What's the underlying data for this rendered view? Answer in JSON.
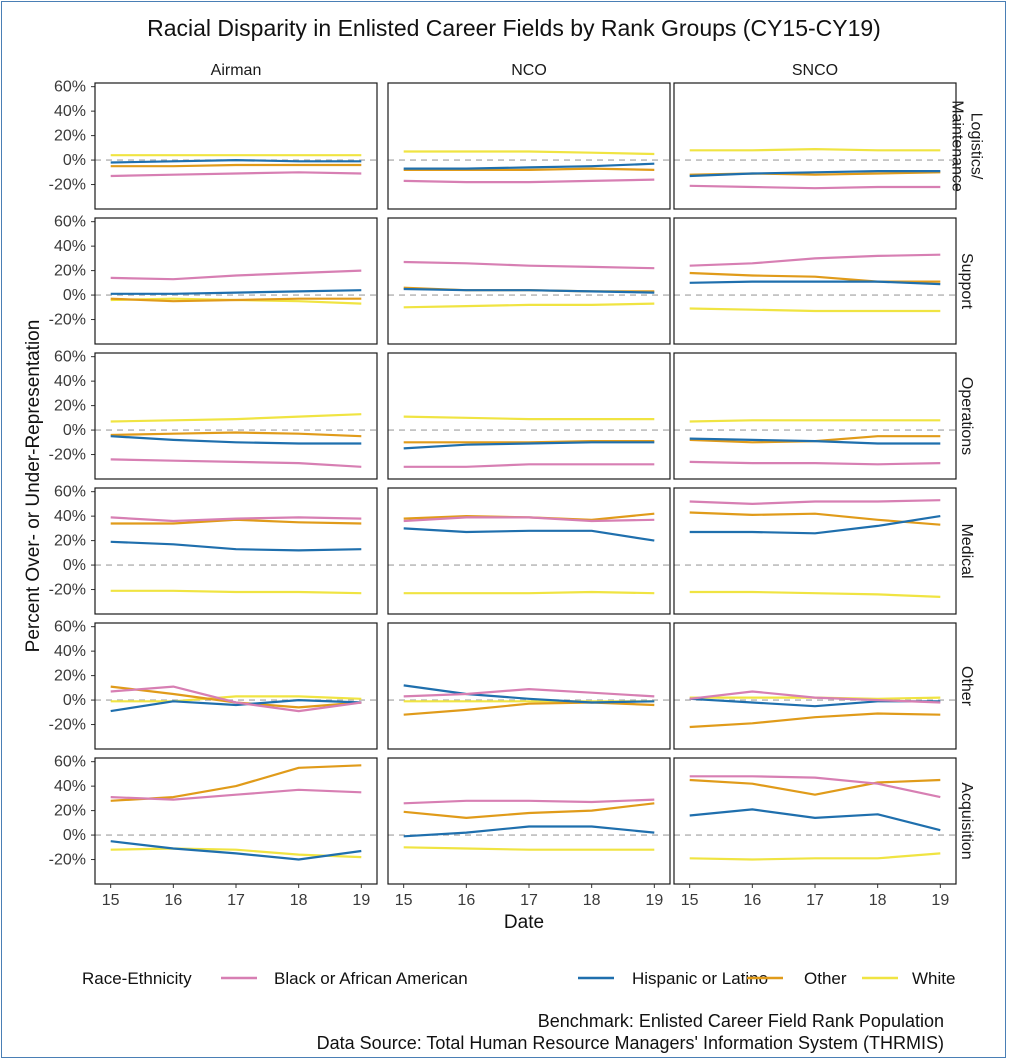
{
  "chart_data": {
    "type": "line",
    "title": "Racial Disparity in Enlisted Career Fields by Rank Groups (CY15-CY19)",
    "xlabel": "Date",
    "ylabel": "Percent Over- or Under-Representation",
    "x": [
      15,
      16,
      17,
      18,
      19
    ],
    "x_ticks": [
      "15",
      "16",
      "17",
      "18",
      "19"
    ],
    "ylim": [
      -40,
      63
    ],
    "y_ticks": [
      "-20%",
      "0%",
      "20%",
      "40%",
      "60%"
    ],
    "y_tick_values": [
      -20,
      0,
      20,
      40,
      60
    ],
    "columns": [
      "Airman",
      "NCO",
      "SNCO"
    ],
    "rows": [
      {
        "id": "logistics",
        "label_lines": [
          "Logistics/",
          "Maintenance"
        ]
      },
      {
        "id": "support",
        "label_lines": [
          "Support"
        ]
      },
      {
        "id": "operations",
        "label_lines": [
          "Operations"
        ]
      },
      {
        "id": "medical",
        "label_lines": [
          "Medical"
        ]
      },
      {
        "id": "other",
        "label_lines": [
          "Other"
        ]
      },
      {
        "id": "acquisition",
        "label_lines": [
          "Acquisition"
        ]
      }
    ],
    "legend": {
      "title": "Race-Ethnicity",
      "position": "bottom",
      "entries": [
        {
          "key": "black",
          "name": "Black or African American",
          "color": "#d77fb3"
        },
        {
          "key": "hispanic",
          "name": "Hispanic or Latino",
          "color": "#1f6fad"
        },
        {
          "key": "other",
          "name": "Other",
          "color": "#e09b1a"
        },
        {
          "key": "white",
          "name": "White",
          "color": "#f0e442"
        }
      ]
    },
    "reference_line": {
      "y": 0,
      "style": "dashed",
      "color": "#b0b0b0"
    },
    "panels": {
      "logistics": {
        "Airman": {
          "black": [
            -13,
            -12,
            -11,
            -10,
            -11
          ],
          "hispanic": [
            -2,
            -1,
            0,
            -1,
            -1
          ],
          "other": [
            -5,
            -5,
            -4,
            -4,
            -4
          ],
          "white": [
            4,
            4,
            4,
            4,
            4
          ]
        },
        "NCO": {
          "black": [
            -17,
            -18,
            -18,
            -17,
            -16
          ],
          "hispanic": [
            -7,
            -7,
            -6,
            -5,
            -3
          ],
          "other": [
            -8,
            -8,
            -8,
            -7,
            -8
          ],
          "white": [
            7,
            7,
            7,
            6,
            5
          ]
        },
        "SNCO": {
          "black": [
            -21,
            -22,
            -23,
            -22,
            -22
          ],
          "hispanic": [
            -13,
            -11,
            -10,
            -9,
            -9
          ],
          "other": [
            -12,
            -11,
            -12,
            -11,
            -10
          ],
          "white": [
            8,
            8,
            9,
            8,
            8
          ]
        }
      },
      "support": {
        "Airman": {
          "black": [
            14,
            13,
            16,
            18,
            20
          ],
          "hispanic": [
            1,
            1,
            2,
            3,
            4
          ],
          "other": [
            -3,
            -5,
            -4,
            -3,
            -3
          ],
          "white": [
            -4,
            -3,
            -4,
            -5,
            -7
          ]
        },
        "NCO": {
          "black": [
            27,
            26,
            24,
            23,
            22
          ],
          "hispanic": [
            5,
            4,
            4,
            3,
            2
          ],
          "other": [
            6,
            4,
            4,
            3,
            3
          ],
          "white": [
            -10,
            -9,
            -8,
            -8,
            -7
          ]
        },
        "SNCO": {
          "black": [
            24,
            26,
            30,
            32,
            33
          ],
          "hispanic": [
            10,
            11,
            11,
            11,
            9
          ],
          "other": [
            18,
            16,
            15,
            11,
            11
          ],
          "white": [
            -11,
            -12,
            -13,
            -13,
            -13
          ]
        }
      },
      "operations": {
        "Airman": {
          "black": [
            -24,
            -25,
            -26,
            -27,
            -30
          ],
          "hispanic": [
            -5,
            -8,
            -10,
            -11,
            -11
          ],
          "other": [
            -4,
            -3,
            -2,
            -3,
            -5
          ],
          "white": [
            7,
            8,
            9,
            11,
            13
          ]
        },
        "NCO": {
          "black": [
            -30,
            -30,
            -28,
            -28,
            -28
          ],
          "hispanic": [
            -15,
            -12,
            -11,
            -10,
            -10
          ],
          "other": [
            -10,
            -10,
            -10,
            -9,
            -9
          ],
          "white": [
            11,
            10,
            9,
            9,
            9
          ]
        },
        "SNCO": {
          "black": [
            -26,
            -27,
            -27,
            -28,
            -27
          ],
          "hispanic": [
            -7,
            -8,
            -9,
            -11,
            -11
          ],
          "other": [
            -8,
            -10,
            -9,
            -5,
            -5
          ],
          "white": [
            7,
            8,
            8,
            8,
            8
          ]
        }
      },
      "medical": {
        "Airman": {
          "black": [
            39,
            36,
            38,
            39,
            38
          ],
          "hispanic": [
            19,
            17,
            13,
            12,
            13
          ],
          "other": [
            34,
            34,
            37,
            35,
            34
          ],
          "white": [
            -21,
            -21,
            -22,
            -22,
            -23
          ]
        },
        "NCO": {
          "black": [
            36,
            39,
            39,
            36,
            37
          ],
          "hispanic": [
            30,
            27,
            28,
            28,
            20
          ],
          "other": [
            38,
            40,
            39,
            37,
            42
          ],
          "white": [
            -23,
            -23,
            -23,
            -22,
            -23
          ]
        },
        "SNCO": {
          "black": [
            52,
            50,
            52,
            52,
            53
          ],
          "hispanic": [
            27,
            27,
            26,
            32,
            40
          ],
          "other": [
            43,
            41,
            42,
            37,
            33
          ],
          "white": [
            -22,
            -22,
            -23,
            -24,
            -26
          ]
        }
      },
      "other": {
        "Airman": {
          "black": [
            7,
            11,
            -2,
            -9,
            -2
          ],
          "hispanic": [
            -9,
            -1,
            -4,
            0,
            -2
          ],
          "other": [
            11,
            5,
            -2,
            -6,
            -2
          ],
          "white": [
            -1,
            -1,
            3,
            3,
            1
          ]
        },
        "NCO": {
          "black": [
            3,
            5,
            9,
            6,
            3
          ],
          "hispanic": [
            12,
            5,
            1,
            -2,
            -1
          ],
          "other": [
            -12,
            -8,
            -3,
            -2,
            -4
          ],
          "white": [
            -1,
            -1,
            -1,
            -1,
            -1
          ]
        },
        "SNCO": {
          "black": [
            1,
            7,
            2,
            0,
            -2
          ],
          "hispanic": [
            1,
            -2,
            -5,
            -1,
            -1
          ],
          "other": [
            -22,
            -19,
            -14,
            -11,
            -12
          ],
          "white": [
            2,
            2,
            2,
            1,
            2
          ]
        }
      },
      "acquisition": {
        "Airman": {
          "black": [
            31,
            29,
            33,
            37,
            35
          ],
          "hispanic": [
            -5,
            -11,
            -15,
            -20,
            -13
          ],
          "other": [
            28,
            31,
            40,
            55,
            57
          ],
          "white": [
            -12,
            -11,
            -12,
            -16,
            -18
          ]
        },
        "NCO": {
          "black": [
            26,
            28,
            28,
            27,
            29
          ],
          "hispanic": [
            -1,
            2,
            7,
            7,
            2
          ],
          "other": [
            19,
            14,
            18,
            20,
            26
          ],
          "white": [
            -10,
            -11,
            -12,
            -12,
            -12
          ]
        },
        "SNCO": {
          "black": [
            48,
            48,
            47,
            42,
            31
          ],
          "hispanic": [
            16,
            21,
            14,
            17,
            4
          ],
          "other": [
            45,
            42,
            33,
            43,
            45
          ],
          "white": [
            -19,
            -20,
            -19,
            -19,
            -15
          ]
        }
      }
    }
  },
  "caption": {
    "line1": "Benchmark: Enlisted Career Field Rank Population",
    "line2": "Data Source: Total Human Resource Managers' Information System (THRMIS)"
  }
}
